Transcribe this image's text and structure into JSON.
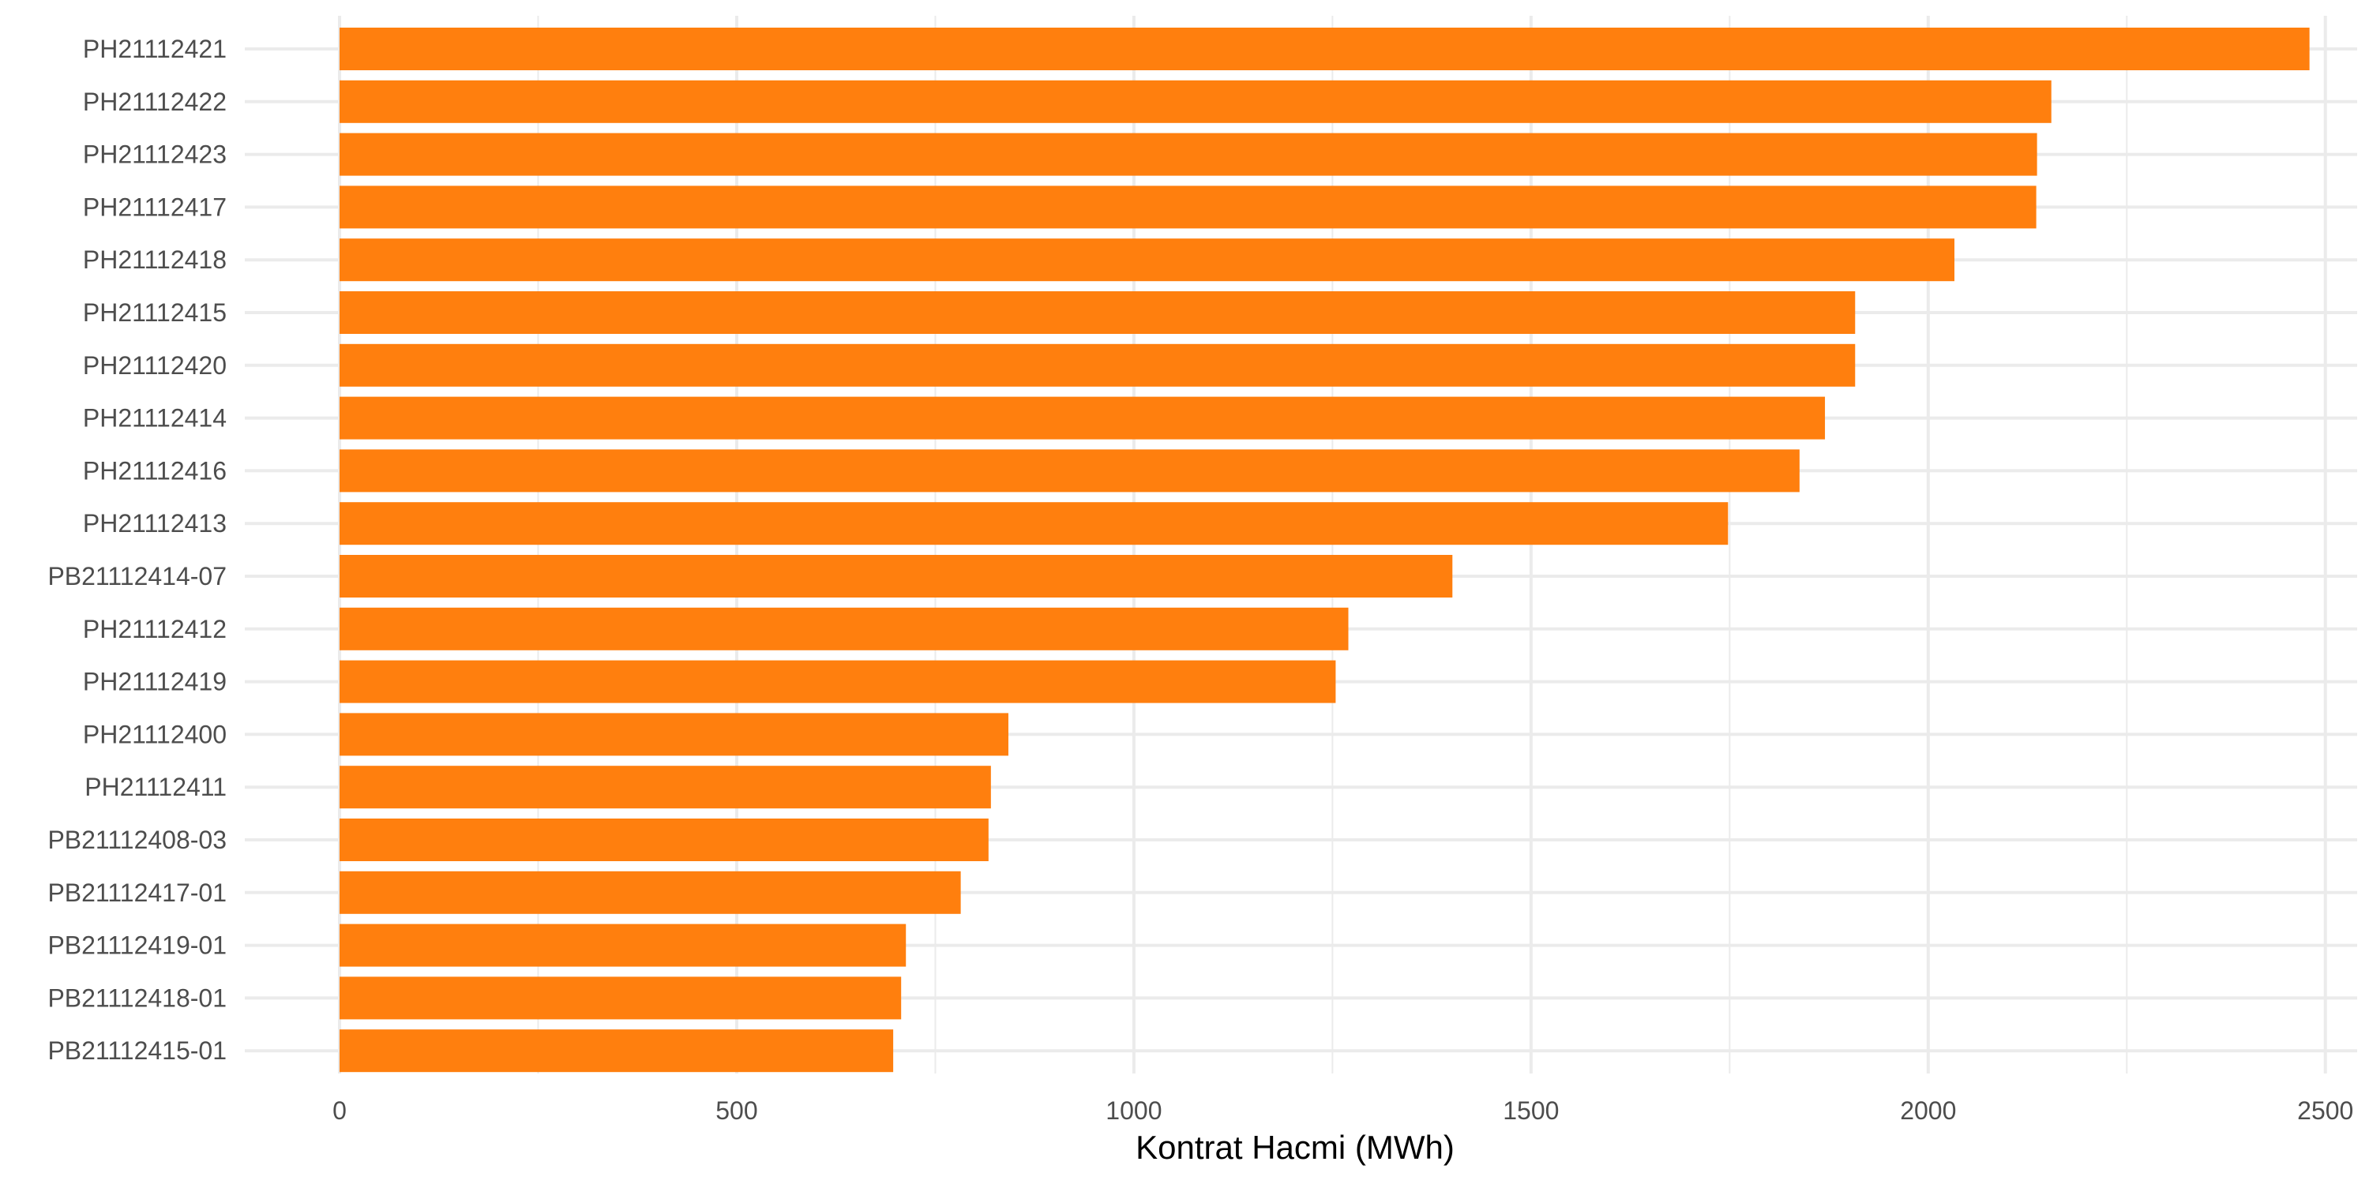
{
  "chart_data": {
    "type": "bar",
    "orientation": "horizontal",
    "title": "",
    "xlabel": "Kontrat Hacmi (MWh)",
    "ylabel": "",
    "xlim": [
      0,
      2540
    ],
    "x_ticks": [
      0,
      500,
      1000,
      1500,
      2000,
      2500
    ],
    "grid": true,
    "legend": "none",
    "bar_color": "#FF7F0E",
    "grid_color": "#EBEBEB",
    "categories": [
      "PH21112421",
      "PH21112422",
      "PH21112423",
      "PH21112417",
      "PH21112418",
      "PH21112415",
      "PH21112420",
      "PH21112414",
      "PH21112416",
      "PH21112413",
      "PB21112414-07",
      "PH21112412",
      "PH21112419",
      "PH21112400",
      "PH21112411",
      "PB21112408-03",
      "PB21112417-01",
      "PB21112419-01",
      "PB21112418-01",
      "PB21112415-01"
    ],
    "values": [
      2480,
      2155,
      2137,
      2136,
      2033,
      1908,
      1908,
      1870,
      1838,
      1748,
      1401,
      1270,
      1254,
      842,
      820,
      817,
      782,
      713,
      707,
      697
    ]
  }
}
